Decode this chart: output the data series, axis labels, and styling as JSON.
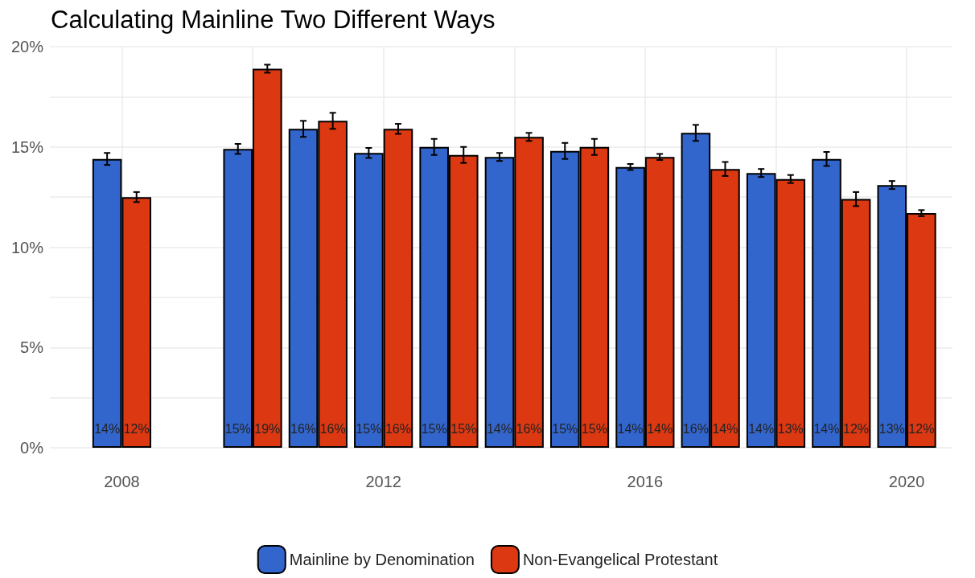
{
  "chart_data": {
    "type": "bar",
    "title": "Calculating Mainline Two Different Ways",
    "x": [
      2008,
      2010,
      2011,
      2012,
      2013,
      2014,
      2015,
      2016,
      2017,
      2018,
      2019,
      2020
    ],
    "series": [
      {
        "name": "Mainline by Denomination",
        "color": "#3366cc",
        "values": [
          14.4,
          14.9,
          15.9,
          14.7,
          15.0,
          14.5,
          14.8,
          14.0,
          15.7,
          13.7,
          14.4,
          13.1
        ],
        "errors": [
          0.3,
          0.25,
          0.4,
          0.25,
          0.4,
          0.2,
          0.4,
          0.15,
          0.4,
          0.2,
          0.35,
          0.2
        ],
        "value_labels": [
          "14%",
          "15%",
          "16%",
          "15%",
          "15%",
          "14%",
          "15%",
          "14%",
          "16%",
          "14%",
          "14%",
          "13%"
        ]
      },
      {
        "name": "Non-Evangelical Protestant",
        "color": "#dc3912",
        "values": [
          12.5,
          18.9,
          16.3,
          15.9,
          14.6,
          15.5,
          15.0,
          14.5,
          13.9,
          13.4,
          12.4,
          11.7
        ],
        "errors": [
          0.25,
          0.2,
          0.4,
          0.25,
          0.4,
          0.2,
          0.4,
          0.15,
          0.35,
          0.2,
          0.35,
          0.15
        ],
        "value_labels": [
          "12%",
          "19%",
          "16%",
          "16%",
          "15%",
          "16%",
          "15%",
          "14%",
          "14%",
          "13%",
          "12%",
          "12%"
        ]
      }
    ],
    "xlim": [
      2006.9,
      2020.7
    ],
    "xticks": [
      2008,
      {
        "value": 2010,
        "label": null
      },
      2012,
      {
        "value": 2014,
        "label": null
      },
      2016,
      {
        "value": 2018,
        "label": null
      },
      2020
    ],
    "ylim": [
      0,
      20
    ],
    "yticks": [
      {
        "value": 0,
        "label": "0%"
      },
      {
        "value": 2.5,
        "label": null
      },
      {
        "value": 5,
        "label": "5%"
      },
      {
        "value": 7.5,
        "label": null
      },
      {
        "value": 10,
        "label": "10%"
      },
      {
        "value": 12.5,
        "label": null
      },
      {
        "value": 15,
        "label": "15%"
      },
      {
        "value": 17.5,
        "label": null
      },
      {
        "value": 20,
        "label": "20%"
      }
    ],
    "grid": true,
    "legend": "bottom"
  }
}
